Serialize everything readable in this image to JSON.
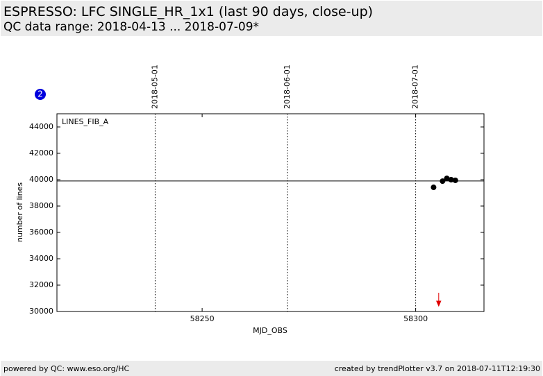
{
  "header": {
    "title": "ESPRESSO: LFC SINGLE_HR_1x1 (last 90 days, close-up)",
    "subtitle": "QC data range: 2018-04-13 ... 2018-07-09*"
  },
  "badge": "2",
  "footer": {
    "left": "powered by QC: www.eso.org/HC",
    "right": "created by trendPlotter v3.7 on 2018-07-11T12:19:30"
  },
  "chart_data": {
    "type": "scatter",
    "x_label": "MJD_OBS",
    "y_label": "number of lines",
    "xlim": [
      58216,
      58316
    ],
    "ylim": [
      30000,
      45000
    ],
    "xticks": [
      58250,
      58300
    ],
    "yticks": [
      30000,
      32000,
      34000,
      36000,
      38000,
      40000,
      42000,
      44000
    ],
    "date_markers": [
      {
        "value": 58239,
        "label": "2018-05-01"
      },
      {
        "value": 58270,
        "label": "2018-06-01"
      },
      {
        "value": 58300,
        "label": "2018-07-01"
      }
    ],
    "reference_value": 39900,
    "offscale_x": [
      58305.4
    ],
    "offscale_color": "#e00000",
    "series": [
      {
        "name": "LINES_FIB_A",
        "color": "#000000",
        "x": [
          58304.2,
          58306.3,
          58307.3,
          58308.3,
          58309.3
        ],
        "values": [
          39420,
          39890,
          40100,
          40000,
          39950
        ]
      }
    ]
  }
}
